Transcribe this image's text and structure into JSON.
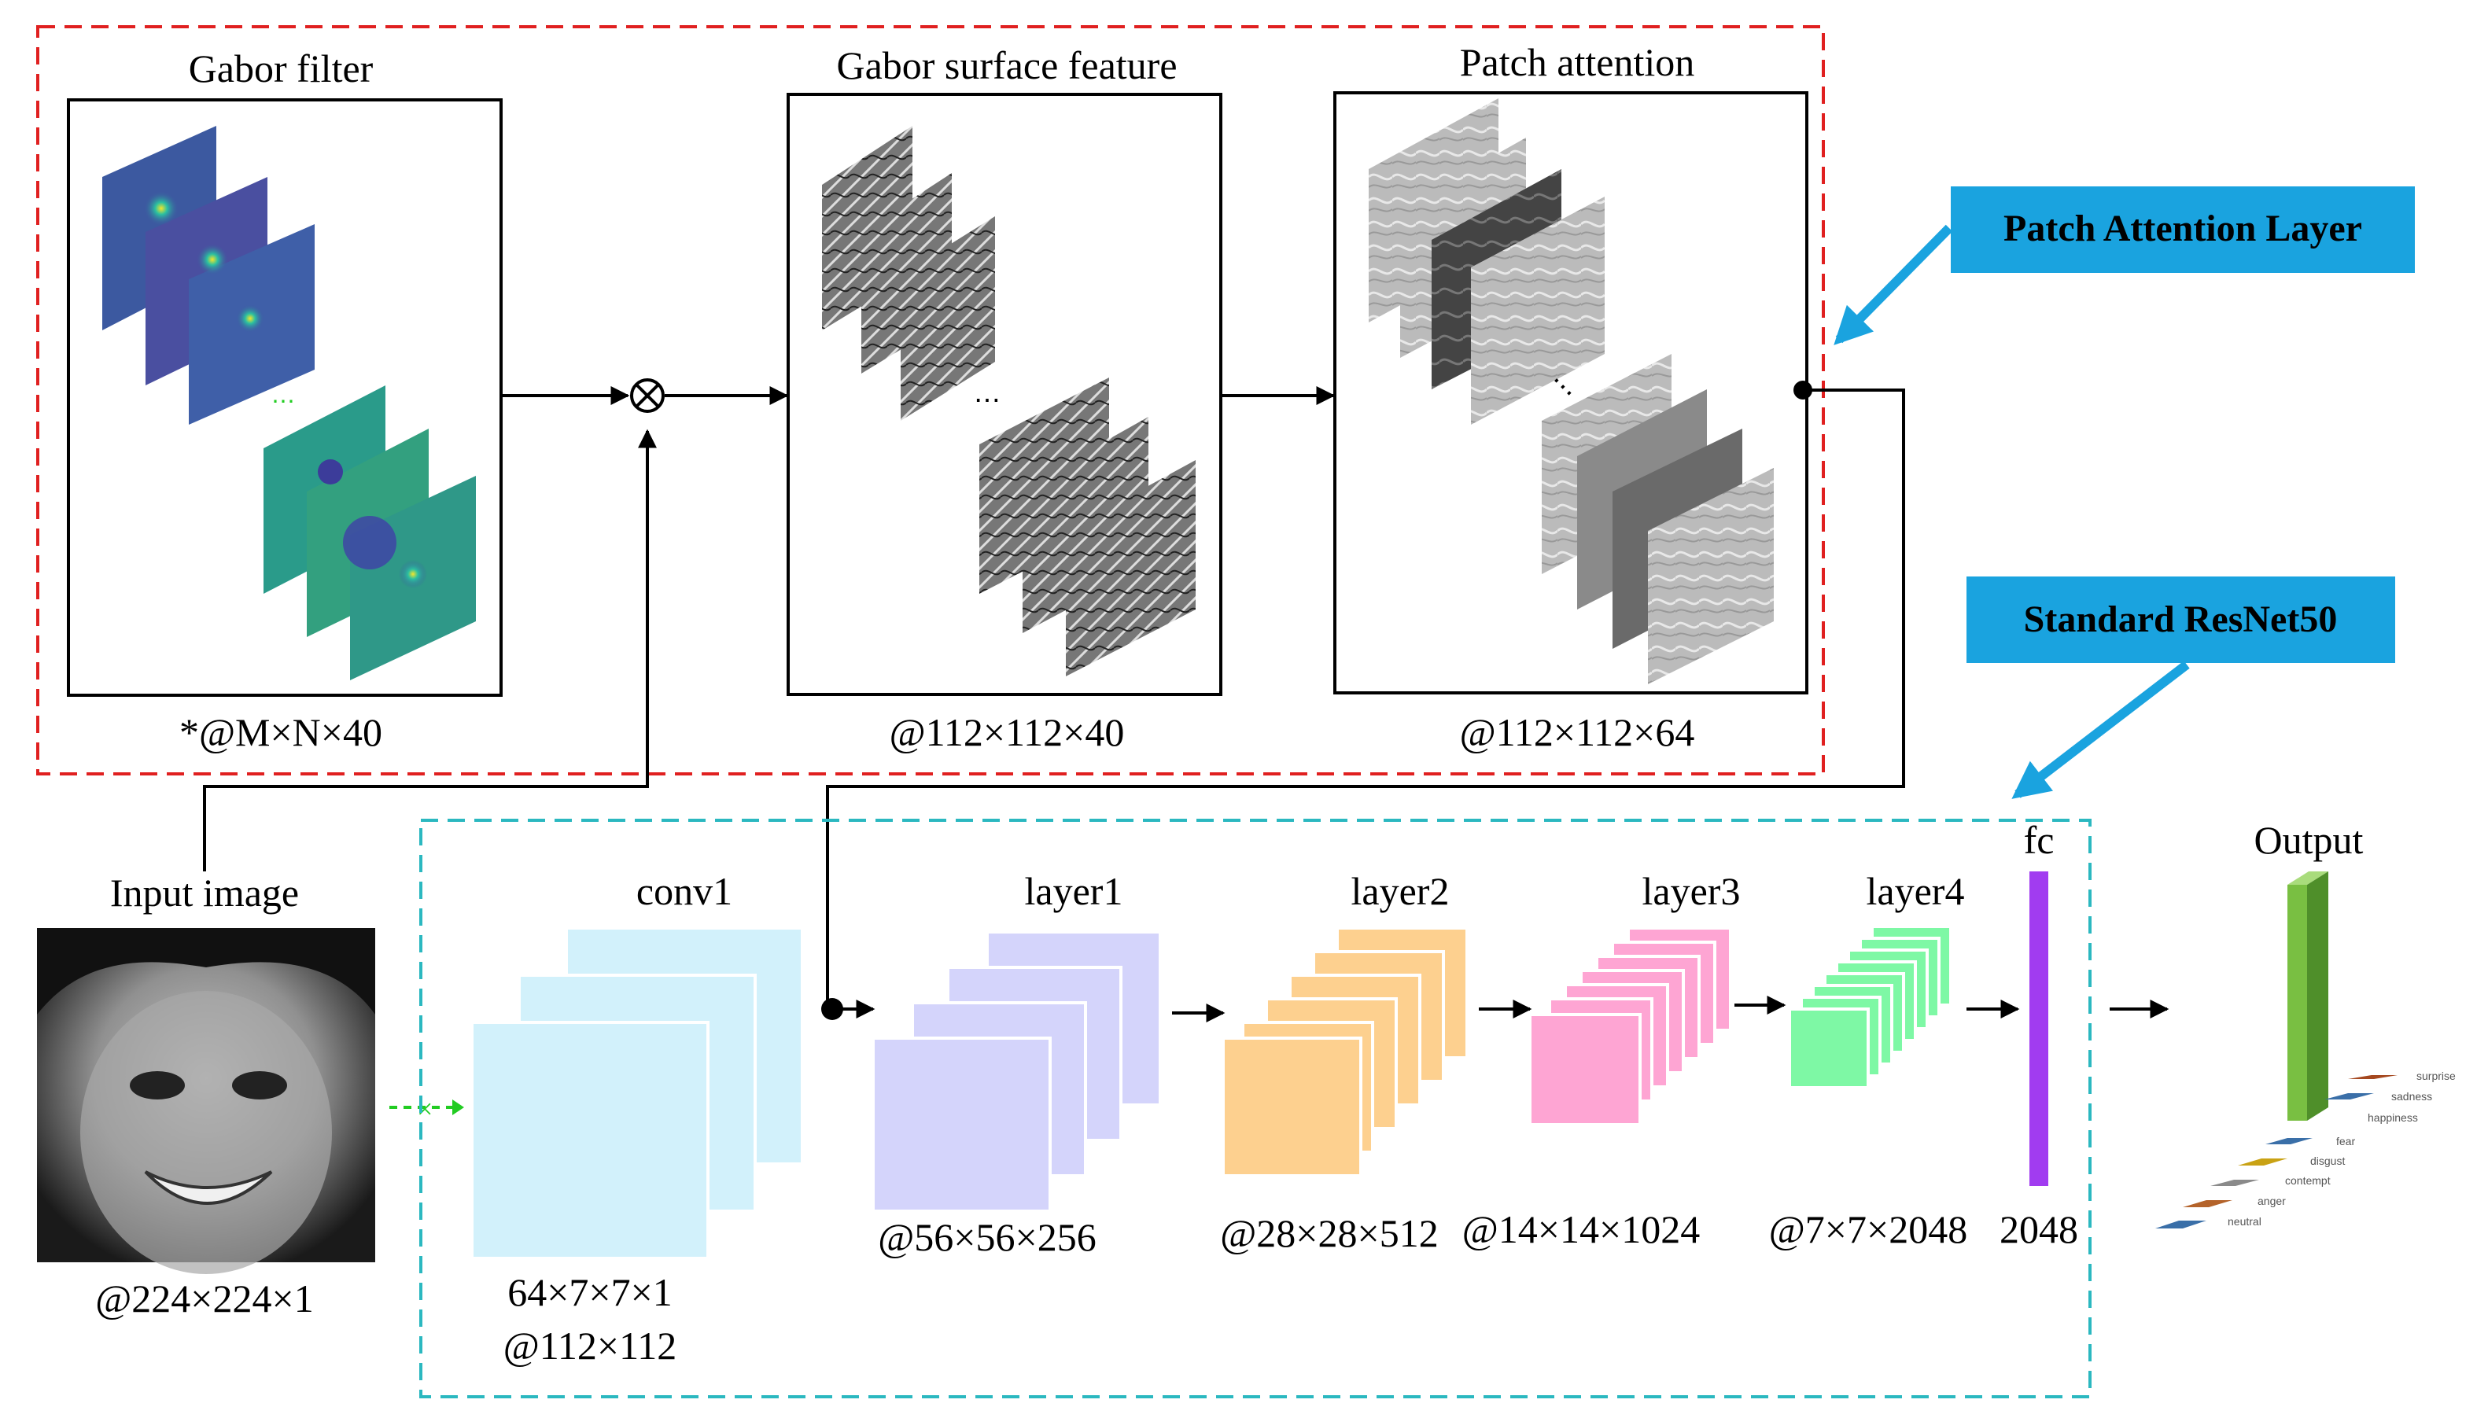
{
  "colors": {
    "gabor_box_border": "#e02020",
    "resnet_box_border": "#2bb8c0",
    "callout_bg": "#1aa3df",
    "callout_arrow": "#1aa3df",
    "conv1": "#d2f1fb",
    "layer1": "#d4d4fb",
    "layer2": "#fdd08f",
    "layer3": "#fea5d3",
    "layer4": "#7ef8a5",
    "fc": "#a13cf0",
    "output_bar": "#79bf42",
    "gabor_blue": "#3c59a0",
    "gabor_teal": "#2a9b8a",
    "dashed_link": "#22cc22"
  },
  "icons": {
    "multiply": "circle-times-icon",
    "arrow": "arrow-right-icon",
    "input_dot": "junction-dot-icon"
  },
  "gabor_module": {
    "gabor_filter": {
      "title": "Gabor filter",
      "dims": "*@M×N×40"
    },
    "gabor_surface": {
      "title": "Gabor surface feature",
      "dims": "@112×112×40"
    },
    "patch_attention": {
      "title": "Patch attention",
      "dims": "@112×112×64"
    },
    "callout": "Patch Attention Layer"
  },
  "input": {
    "title": "Input image",
    "dims": "@224×224×1"
  },
  "resnet": {
    "callout": "Standard ResNet50",
    "conv1": {
      "title": "conv1",
      "kernel": "64×7×7×1",
      "dims": "@112×112"
    },
    "layer1": {
      "title": "layer1",
      "dims": "@56×56×256"
    },
    "layer2": {
      "title": "layer2",
      "dims": "@28×28×512"
    },
    "layer3": {
      "title": "layer3",
      "dims": "@14×14×1024"
    },
    "layer4": {
      "title": "layer4",
      "dims": "@7×7×2048"
    },
    "fc": {
      "title": "fc",
      "dims": "2048"
    }
  },
  "output": {
    "title": "Output",
    "classes": [
      "surprise",
      "sadness",
      "happiness",
      "fear",
      "disgust",
      "contempt",
      "anger",
      "neutral"
    ],
    "predicted": "happiness"
  }
}
